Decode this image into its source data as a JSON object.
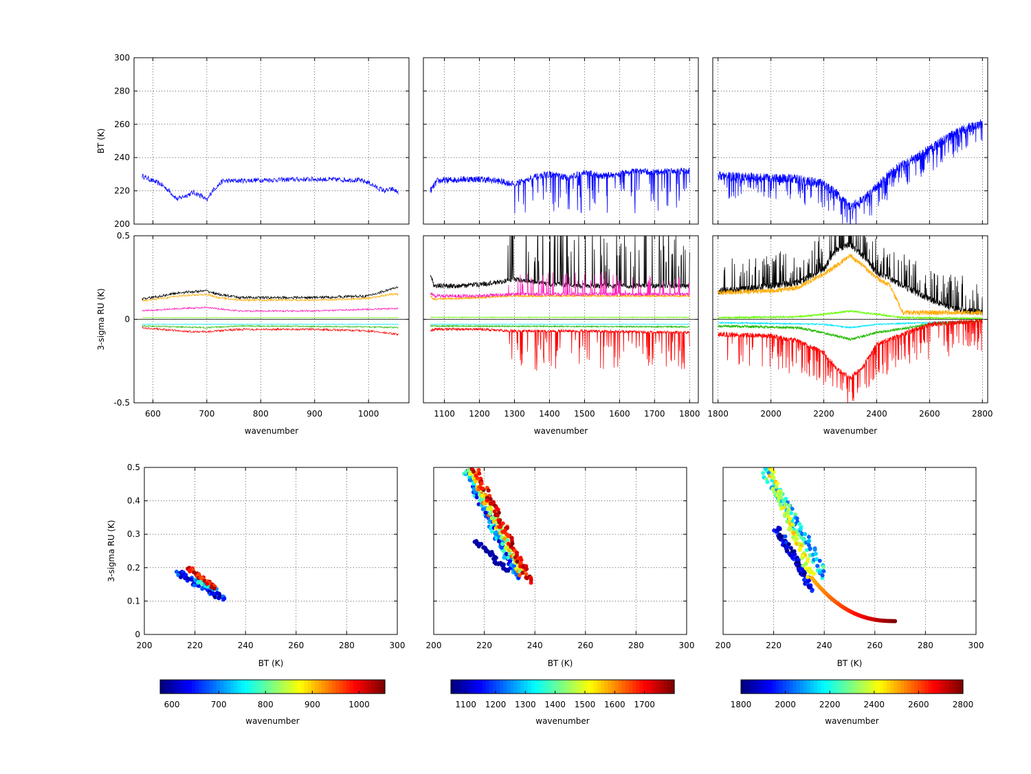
{
  "chart_data": [
    {
      "id": "bt-lw",
      "type": "line",
      "xlim": [
        565,
        1075
      ],
      "ylim": [
        200,
        300
      ],
      "xticks": [
        600,
        700,
        800,
        900,
        1000
      ],
      "yticks": [
        200,
        220,
        240,
        260,
        280,
        300
      ],
      "xlabel": "",
      "ylabel": "BT (K)",
      "grid": true,
      "series": [
        {
          "color": "#0000ff",
          "x": [
            580,
            600,
            615,
            630,
            645,
            660,
            675,
            690,
            700,
            710,
            720,
            730,
            750,
            800,
            900,
            980,
            1000,
            1015,
            1030,
            1045,
            1055
          ],
          "y": [
            229,
            226,
            224,
            220,
            215,
            217,
            219,
            217,
            214,
            220,
            223,
            226,
            226,
            226.5,
            227,
            226.5,
            225,
            222,
            220,
            221,
            219
          ],
          "noise": 1.5
        }
      ]
    },
    {
      "id": "bt-mw",
      "type": "line",
      "xlim": [
        1040,
        1825
      ],
      "ylim": [
        200,
        300
      ],
      "xticks": [
        1100,
        1200,
        1300,
        1400,
        1500,
        1600,
        1700,
        1800
      ],
      "yticks": [
        200,
        220,
        240,
        260,
        280,
        300
      ],
      "xlabel": "",
      "ylabel": "",
      "grid": true,
      "series": [
        {
          "color": "#0000ff",
          "x": [
            1060,
            1080,
            1150,
            1200,
            1250,
            1300,
            1350,
            1400,
            1450,
            1500,
            1550,
            1600,
            1650,
            1700,
            1750,
            1800
          ],
          "y": [
            220,
            226,
            227,
            227,
            226,
            224,
            228,
            230,
            228,
            231,
            229,
            230,
            232,
            231,
            232,
            232
          ],
          "noise": 2,
          "spikes_from": 1300,
          "spike_depth": 18
        }
      ]
    },
    {
      "id": "bt-sw",
      "type": "line",
      "xlim": [
        1780,
        2820
      ],
      "ylim": [
        200,
        300
      ],
      "xticks": [
        1800,
        2000,
        2200,
        2400,
        2600,
        2800
      ],
      "yticks": [
        200,
        220,
        240,
        260,
        280,
        300
      ],
      "xlabel": "",
      "ylabel": "",
      "grid": true,
      "series": [
        {
          "color": "#0000ff",
          "x": [
            1800,
            1900,
            2000,
            2100,
            2200,
            2250,
            2300,
            2350,
            2400,
            2450,
            2500,
            2550,
            2600,
            2650,
            2700,
            2750,
            2800
          ],
          "y": [
            229,
            228,
            228,
            227,
            224,
            218,
            210,
            215,
            222,
            230,
            236,
            240,
            245,
            250,
            255,
            258,
            260
          ],
          "noise": 3,
          "spikes_from": 1820,
          "spike_depth": 10
        }
      ]
    },
    {
      "id": "ru-lw",
      "type": "line",
      "xlim": [
        565,
        1075
      ],
      "ylim": [
        -0.5,
        0.5
      ],
      "xticks": [
        600,
        700,
        800,
        900,
        1000
      ],
      "yticks": [
        -0.5,
        0,
        0.5
      ],
      "yticklabels": [
        "-0.5",
        "0",
        "0.5"
      ],
      "xlabel": "wavenumber",
      "ylabel": "3-sigma RU (K)",
      "grid": true,
      "series": [
        {
          "color": "#000000",
          "x": [
            580,
            650,
            700,
            720,
            760,
            800,
            900,
            1000,
            1040,
            1055
          ],
          "y": [
            0.12,
            0.16,
            0.17,
            0.15,
            0.13,
            0.13,
            0.13,
            0.14,
            0.18,
            0.19
          ],
          "noise": 0.008
        },
        {
          "color": "#ffaa00",
          "x": [
            580,
            650,
            700,
            720,
            760,
            800,
            900,
            1000,
            1040,
            1055
          ],
          "y": [
            0.11,
            0.14,
            0.15,
            0.13,
            0.115,
            0.115,
            0.115,
            0.125,
            0.15,
            0.15
          ],
          "noise": 0.006
        },
        {
          "color": "#ff22bb",
          "x": [
            580,
            650,
            700,
            760,
            800,
            900,
            1000,
            1055
          ],
          "y": [
            0.05,
            0.065,
            0.07,
            0.05,
            0.05,
            0.05,
            0.06,
            0.065
          ],
          "noise": 0.005
        },
        {
          "color": "#66ff00",
          "x": [
            580,
            1055
          ],
          "y": [
            0.01,
            0.01
          ],
          "noise": 0.001
        },
        {
          "color": "#00e5ff",
          "x": [
            580,
            1055
          ],
          "y": [
            -0.03,
            -0.03
          ],
          "noise": 0.001
        },
        {
          "color": "#22bb00",
          "x": [
            580,
            700,
            760,
            1000,
            1055
          ],
          "y": [
            -0.04,
            -0.05,
            -0.04,
            -0.045,
            -0.05
          ],
          "noise": 0.004
        },
        {
          "color": "#ff0000",
          "x": [
            580,
            650,
            700,
            760,
            900,
            1000,
            1055
          ],
          "y": [
            -0.05,
            -0.07,
            -0.075,
            -0.06,
            -0.06,
            -0.07,
            -0.09
          ],
          "noise": 0.006
        }
      ]
    },
    {
      "id": "ru-mw",
      "type": "line",
      "xlim": [
        1040,
        1825
      ],
      "ylim": [
        -0.5,
        0.5
      ],
      "xticks": [
        1100,
        1200,
        1300,
        1400,
        1500,
        1600,
        1700,
        1800
      ],
      "yticks": [
        -0.5,
        0,
        0.5
      ],
      "xlabel": "wavenumber",
      "ylabel": "",
      "grid": true,
      "series": [
        {
          "color": "#000000",
          "x": [
            1060,
            1070,
            1150,
            1200,
            1250,
            1300,
            1400,
            1500,
            1600,
            1700,
            1800
          ],
          "y": [
            0.27,
            0.2,
            0.2,
            0.21,
            0.22,
            0.24,
            0.21,
            0.2,
            0.2,
            0.2,
            0.2
          ],
          "noise": 0.015,
          "spikes_from": 1280,
          "spike_depth": 0.35
        },
        {
          "color": "#ffaa00",
          "x": [
            1060,
            1070,
            1200,
            1300,
            1500,
            1800
          ],
          "y": [
            0.14,
            0.12,
            0.13,
            0.14,
            0.14,
            0.14
          ],
          "noise": 0.006
        },
        {
          "color": "#ff22bb",
          "x": [
            1060,
            1070,
            1200,
            1300,
            1500,
            1800
          ],
          "y": [
            0.16,
            0.14,
            0.14,
            0.15,
            0.15,
            0.15
          ],
          "noise": 0.01,
          "spikes_from": 1280,
          "spike_depth": 0.1
        },
        {
          "color": "#66ff00",
          "x": [
            1060,
            1800
          ],
          "y": [
            0.012,
            0.012
          ],
          "noise": 0.002
        },
        {
          "color": "#00e5ff",
          "x": [
            1060,
            1800
          ],
          "y": [
            -0.03,
            -0.03
          ],
          "noise": 0.001
        },
        {
          "color": "#22bb00",
          "x": [
            1060,
            1800
          ],
          "y": [
            -0.04,
            -0.045
          ],
          "noise": 0.004
        },
        {
          "color": "#ff0000",
          "x": [
            1060,
            1070,
            1200,
            1300,
            1500,
            1800
          ],
          "y": [
            -0.07,
            -0.06,
            -0.06,
            -0.07,
            -0.07,
            -0.08
          ],
          "noise": 0.008,
          "spikes_from": 1280,
          "spike_depth": -0.18
        }
      ]
    },
    {
      "id": "ru-sw",
      "type": "line",
      "xlim": [
        1780,
        2820
      ],
      "ylim": [
        -0.5,
        0.5
      ],
      "xticks": [
        1800,
        2000,
        2200,
        2400,
        2600,
        2800
      ],
      "yticks": [
        -0.5,
        0,
        0.5
      ],
      "xlabel": "wavenumber",
      "ylabel": "",
      "grid": true,
      "series": [
        {
          "color": "#000000",
          "x": [
            1800,
            1900,
            2000,
            2100,
            2200,
            2250,
            2300,
            2350,
            2400,
            2500,
            2600,
            2700,
            2800
          ],
          "y": [
            0.17,
            0.18,
            0.2,
            0.22,
            0.3,
            0.42,
            0.45,
            0.38,
            0.28,
            0.2,
            0.12,
            0.06,
            0.04
          ],
          "noise": 0.02,
          "spikes_from": 1820,
          "spike_depth": 0.15
        },
        {
          "color": "#ffaa00",
          "x": [
            1800,
            2000,
            2100,
            2200,
            2300,
            2400,
            2450,
            2500,
            2800
          ],
          "y": [
            0.16,
            0.17,
            0.19,
            0.27,
            0.38,
            0.25,
            0.2,
            0.04,
            0.04
          ],
          "noise": 0.015
        },
        {
          "color": "#66ff00",
          "x": [
            1800,
            2100,
            2200,
            2300,
            2400,
            2500,
            2800
          ],
          "y": [
            0.01,
            0.015,
            0.03,
            0.05,
            0.03,
            0.01,
            0.005
          ],
          "noise": 0.006
        },
        {
          "color": "#00e5ff",
          "x": [
            1800,
            2200,
            2300,
            2400,
            2800
          ],
          "y": [
            -0.02,
            -0.03,
            -0.05,
            -0.03,
            -0.01
          ],
          "noise": 0.004
        },
        {
          "color": "#22bb00",
          "x": [
            1800,
            2100,
            2200,
            2300,
            2400,
            2600,
            2800
          ],
          "y": [
            -0.04,
            -0.05,
            -0.08,
            -0.12,
            -0.08,
            -0.03,
            -0.01
          ],
          "noise": 0.008
        },
        {
          "color": "#ff0000",
          "x": [
            1800,
            2000,
            2100,
            2200,
            2250,
            2300,
            2350,
            2400,
            2600,
            2800
          ],
          "y": [
            -0.09,
            -0.1,
            -0.13,
            -0.2,
            -0.3,
            -0.35,
            -0.28,
            -0.15,
            -0.03,
            -0.01
          ],
          "noise": 0.015,
          "spikes_from": 1820,
          "spike_depth": -0.15
        }
      ]
    },
    {
      "id": "sc-lw",
      "type": "scatter",
      "xlim": [
        200,
        300
      ],
      "ylim": [
        0,
        0.5
      ],
      "xticks": [
        200,
        220,
        240,
        260,
        280,
        300
      ],
      "yticks": [
        0,
        0.1,
        0.2,
        0.3,
        0.4,
        0.5
      ],
      "yticklabels": [
        "0",
        "0.1",
        "0.2",
        "0.3",
        "0.4",
        "0.5"
      ],
      "xlabel": "BT (K)",
      "ylabel": "3-sigma RU (K)",
      "grid": true,
      "colorbar": {
        "min": 575,
        "max": 1055,
        "ticks": [
          600,
          700,
          800,
          900,
          1000
        ],
        "label": "wavenumber"
      },
      "bands": [
        {
          "c0": 575,
          "c1": 700,
          "x0": 213,
          "y0": 0.185,
          "x1": 232,
          "y1": 0.105,
          "n": 60,
          "spread": 0.008
        },
        {
          "c0": 700,
          "c1": 800,
          "x0": 220,
          "y0": 0.165,
          "x1": 228,
          "y1": 0.135,
          "n": 30,
          "spread": 0.004
        },
        {
          "c0": 950,
          "c1": 1055,
          "x0": 217,
          "y0": 0.2,
          "x1": 228,
          "y1": 0.14,
          "n": 40,
          "spread": 0.004
        }
      ]
    },
    {
      "id": "sc-mw",
      "type": "scatter",
      "xlim": [
        200,
        300
      ],
      "ylim": [
        0,
        0.5
      ],
      "xticks": [
        200,
        220,
        240,
        260,
        280,
        300
      ],
      "yticks": [
        0,
        0.1,
        0.2,
        0.3,
        0.4,
        0.5
      ],
      "xlabel": "BT (K)",
      "ylabel": "",
      "grid": true,
      "colorbar": {
        "min": 1050,
        "max": 1800,
        "ticks": [
          1100,
          1200,
          1300,
          1400,
          1500,
          1600,
          1700
        ],
        "label": "wavenumber"
      },
      "bands": [
        {
          "c0": 1060,
          "c1": 1100,
          "x0": 217,
          "y0": 0.28,
          "x1": 229,
          "y1": 0.19,
          "n": 50,
          "spread": 0.006
        },
        {
          "c0": 1100,
          "c1": 1400,
          "x0": 213,
          "y0": 0.49,
          "x1": 233,
          "y1": 0.17,
          "n": 120,
          "spread": 0.012
        },
        {
          "c0": 1400,
          "c1": 1650,
          "x0": 214,
          "y0": 0.5,
          "x1": 235,
          "y1": 0.18,
          "n": 110,
          "spread": 0.012
        },
        {
          "c0": 1650,
          "c1": 1800,
          "x0": 216,
          "y0": 0.5,
          "x1": 238,
          "y1": 0.16,
          "n": 90,
          "spread": 0.01
        }
      ]
    },
    {
      "id": "sc-sw",
      "type": "scatter",
      "xlim": [
        200,
        300
      ],
      "ylim": [
        0,
        0.5
      ],
      "xticks": [
        200,
        220,
        240,
        260,
        280,
        300
      ],
      "yticks": [
        0,
        0.1,
        0.2,
        0.3,
        0.4,
        0.5
      ],
      "xlabel": "BT (K)",
      "ylabel": "",
      "grid": true,
      "colorbar": {
        "min": 1800,
        "max": 2800,
        "ticks": [
          1800,
          2000,
          2200,
          2400,
          2600,
          2800
        ],
        "label": "wavenumber"
      },
      "bands": [
        {
          "c0": 1800,
          "c1": 2000,
          "x0": 221,
          "y0": 0.32,
          "x1": 235,
          "y1": 0.14,
          "n": 80,
          "spread": 0.01
        },
        {
          "c0": 2000,
          "c1": 2300,
          "x0": 216,
          "y0": 0.5,
          "x1": 240,
          "y1": 0.18,
          "n": 100,
          "spread": 0.02
        },
        {
          "c0": 2300,
          "c1": 2500,
          "x0": 218,
          "y0": 0.5,
          "x1": 235,
          "y1": 0.17,
          "n": 80,
          "spread": 0.015
        },
        {
          "c0": 2500,
          "c1": 2800,
          "x0": 235,
          "y0": 0.17,
          "x1": 268,
          "y1": 0.04,
          "n": 80,
          "spread": 0.003,
          "curve": true
        }
      ]
    }
  ],
  "colors": {
    "line_bt": "#0000ff"
  }
}
